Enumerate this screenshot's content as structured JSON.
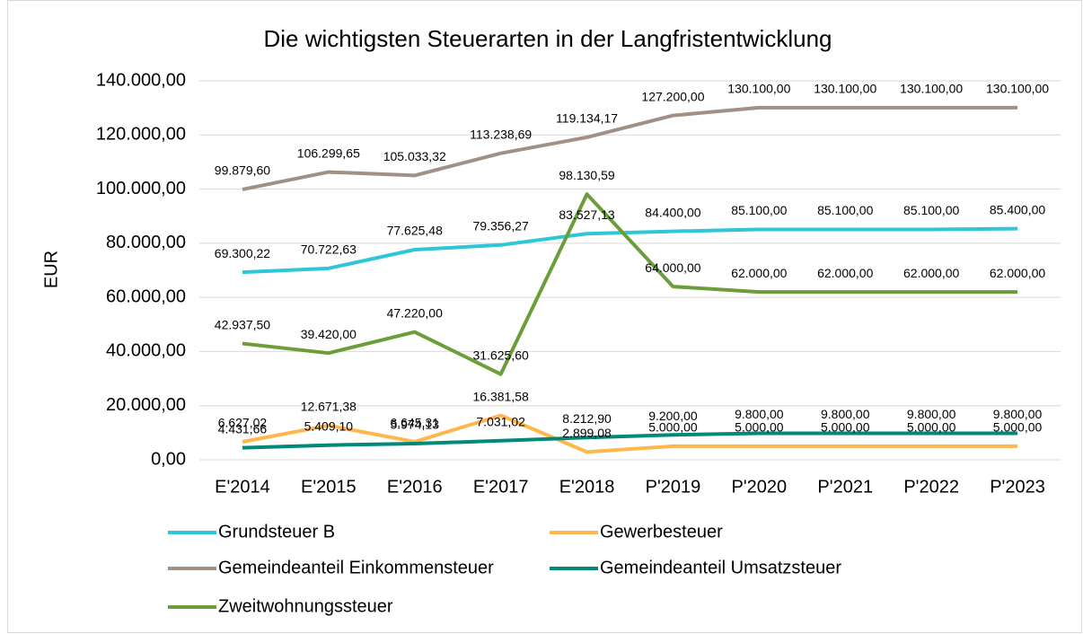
{
  "chart_data": {
    "type": "line",
    "title": "Die wichtigsten Steuerarten in der Langfristentwicklung",
    "y_label": "EUR",
    "categories": [
      "E'2014",
      "E'2015",
      "E'2016",
      "E'2017",
      "E'2018",
      "P'2019",
      "P'2020",
      "P'2021",
      "P'2022",
      "P'2023"
    ],
    "ylim": [
      0,
      140000
    ],
    "yticks": [
      {
        "value": 0,
        "label": "0,00"
      },
      {
        "value": 20000,
        "label": "20.000,00"
      },
      {
        "value": 40000,
        "label": "40.000,00"
      },
      {
        "value": 60000,
        "label": "60.000,00"
      },
      {
        "value": 80000,
        "label": "80.000,00"
      },
      {
        "value": 100000,
        "label": "100.000,00"
      },
      {
        "value": 120000,
        "label": "120.000,00"
      },
      {
        "value": 140000,
        "label": "140.000,00"
      }
    ],
    "grid": true,
    "legend": "bottom",
    "series": [
      {
        "name": "Grundsteuer B",
        "color": "#2ec6d8",
        "values": [
          69300.22,
          70722.63,
          77625.48,
          79356.27,
          83527.13,
          84400,
          85100,
          85100,
          85100,
          85400
        ],
        "value_labels": [
          "69.300,22",
          "70.722,63",
          "77.625,48",
          "79.356,27",
          "83.527,13",
          "84.400,00",
          "85.100,00",
          "85.100,00",
          "85.100,00",
          "85.400,00"
        ]
      },
      {
        "name": "Gewerbesteuer",
        "color": "#ffb74d",
        "values": [
          6627.02,
          12671.38,
          6645.31,
          16381.58,
          2899.08,
          5000,
          5000,
          5000,
          5000,
          5000
        ],
        "value_labels": [
          "6.627,02",
          "12.671,38",
          "6.645,31",
          "16.381,58",
          "2.899,08",
          "5.000,00",
          "5.000,00",
          "5.000,00",
          "5.000,00",
          "5.000,00"
        ]
      },
      {
        "name": "Gemeindeanteil Einkommensteuer",
        "color": "#a39084",
        "values": [
          99879.6,
          106299.65,
          105033.32,
          113238.69,
          119134.17,
          127200,
          130100,
          130100,
          130100,
          130100
        ],
        "value_labels": [
          "99.879,60",
          "106.299,65",
          "105.033,32",
          "113.238,69",
          "119.134,17",
          "127.200,00",
          "130.100,00",
          "130.100,00",
          "130.100,00",
          "130.100,00"
        ]
      },
      {
        "name": "Gemeindeanteil Umsatzsteuer",
        "color": "#00897b",
        "values": [
          4431.66,
          5409.1,
          5974.13,
          7031.02,
          8212.9,
          9200,
          9800,
          9800,
          9800,
          9800
        ],
        "value_labels": [
          "4.431,66",
          "5.409,10",
          "5.974,13",
          "7.031,02",
          "8.212,90",
          "9.200,00",
          "9.800,00",
          "9.800,00",
          "9.800,00",
          "9.800,00"
        ]
      },
      {
        "name": "Zweitwohnungssteuer",
        "color": "#6b9e3a",
        "values": [
          42937.5,
          39420,
          47220,
          31625.6,
          98130.59,
          64000,
          62000,
          62000,
          62000,
          62000
        ],
        "value_labels": [
          "42.937,50",
          "39.420,00",
          "47.220,00",
          "31.625,60",
          "98.130,59",
          "64.000,00",
          "62.000,00",
          "62.000,00",
          "62.000,00",
          "62.000,00"
        ]
      }
    ]
  }
}
